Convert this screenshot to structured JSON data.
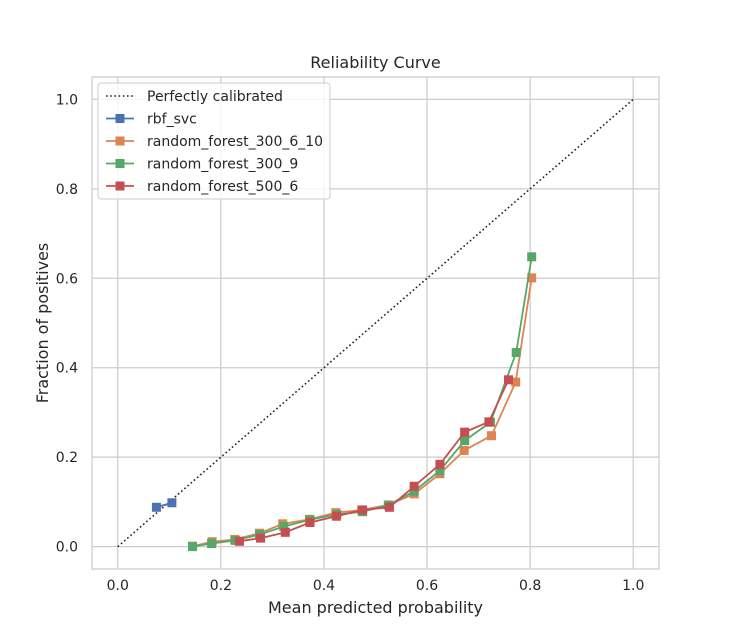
{
  "chart_data": {
    "type": "line",
    "title": "Reliability Curve",
    "xlabel": "Mean predicted probability",
    "ylabel": "Fraction of positives",
    "xlim": [
      -0.05,
      1.05
    ],
    "ylim": [
      -0.05,
      1.05
    ],
    "xticks": [
      "0.0",
      "0.2",
      "0.4",
      "0.6",
      "0.8",
      "1.0"
    ],
    "yticks": [
      "0.0",
      "0.2",
      "0.4",
      "0.6",
      "0.8",
      "1.0"
    ],
    "grid": true,
    "legend_position": "top-left",
    "reference": {
      "name": "Perfectly calibrated",
      "style": "dotted",
      "color": "#222222",
      "x": [
        0,
        1
      ],
      "y": [
        0,
        1
      ]
    },
    "series": [
      {
        "name": "rbf_svc",
        "color": "#4c72b0",
        "x": [
          0.075,
          0.105
        ],
        "y": [
          0.088,
          0.098
        ]
      },
      {
        "name": "random_forest_300_6_10",
        "color": "#dd8452",
        "x": [
          0.145,
          0.183,
          0.227,
          0.275,
          0.32,
          0.372,
          0.423,
          0.473,
          0.525,
          0.575,
          0.625,
          0.672,
          0.725,
          0.772,
          0.803
        ],
        "y": [
          0.001,
          0.011,
          0.016,
          0.03,
          0.051,
          0.061,
          0.076,
          0.082,
          0.093,
          0.118,
          0.163,
          0.215,
          0.248,
          0.368,
          0.601
        ]
      },
      {
        "name": "random_forest_300_9",
        "color": "#55a868",
        "x": [
          0.145,
          0.182,
          0.228,
          0.275,
          0.322,
          0.373,
          0.425,
          0.475,
          0.525,
          0.575,
          0.625,
          0.673,
          0.723,
          0.773,
          0.803
        ],
        "y": [
          0.0,
          0.007,
          0.014,
          0.027,
          0.045,
          0.06,
          0.072,
          0.078,
          0.093,
          0.124,
          0.17,
          0.237,
          0.278,
          0.434,
          0.648
        ]
      },
      {
        "name": "random_forest_500_6",
        "color": "#c44e52",
        "x": [
          0.236,
          0.277,
          0.325,
          0.373,
          0.424,
          0.475,
          0.527,
          0.575,
          0.625,
          0.673,
          0.72,
          0.758
        ],
        "y": [
          0.012,
          0.019,
          0.032,
          0.054,
          0.068,
          0.082,
          0.088,
          0.135,
          0.184,
          0.256,
          0.279,
          0.373
        ]
      }
    ]
  }
}
